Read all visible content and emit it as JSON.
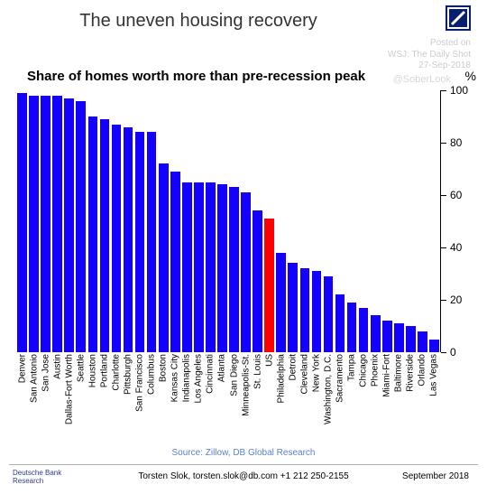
{
  "title": "The uneven housing recovery",
  "subtitle": "Share of homes worth more than pre-recession peak",
  "pct_label": "%",
  "logo": {
    "bg": "#0a1e6e",
    "slash": "#ffffff"
  },
  "watermark": {
    "line1": "Posted on",
    "line2": "WSJ: The Daily Shot",
    "line3": "27-Sep-2018",
    "brand": "@SoberLook"
  },
  "source": "Source: Zillow, DB Global Research",
  "footer": {
    "brand_line1": "Deutsche Bank",
    "brand_line2": "Research",
    "center": "Torsten Slok, torsten.slok@db.com  +1 212 250-2155",
    "right": "September  2018"
  },
  "chart": {
    "type": "bar",
    "ylim": [
      0,
      100
    ],
    "ytick_step": 20,
    "yticks": [
      0,
      20,
      40,
      60,
      80,
      100
    ],
    "bar_gap_ratio": 0.18,
    "default_color": "#1400ff",
    "highlight_color": "#ff0000",
    "axis_color": "#000000",
    "label_fontsize": 10,
    "tick_fontsize": 12,
    "categories": [
      {
        "label": "Denver",
        "value": 99
      },
      {
        "label": "San Antonio",
        "value": 98
      },
      {
        "label": "San Jose",
        "value": 98
      },
      {
        "label": "Austin",
        "value": 98
      },
      {
        "label": "Dallas-Fort Worth",
        "value": 97
      },
      {
        "label": "Seattle",
        "value": 96
      },
      {
        "label": "Houston",
        "value": 90
      },
      {
        "label": "Portland",
        "value": 89
      },
      {
        "label": "Charlotte",
        "value": 87
      },
      {
        "label": "Pittsburgh",
        "value": 86
      },
      {
        "label": "San Francisco",
        "value": 84
      },
      {
        "label": "Columbus",
        "value": 84
      },
      {
        "label": "Boston",
        "value": 72
      },
      {
        "label": "Kansas City",
        "value": 69
      },
      {
        "label": "Indianapolis",
        "value": 65
      },
      {
        "label": "Los Angeles",
        "value": 65
      },
      {
        "label": "Cincinnati",
        "value": 65
      },
      {
        "label": "Atlanta",
        "value": 64
      },
      {
        "label": "San Diego",
        "value": 63
      },
      {
        "label": "Minneapolis-St.",
        "value": 61
      },
      {
        "label": "St. Louis",
        "value": 54
      },
      {
        "label": "US",
        "value": 51,
        "highlight": true
      },
      {
        "label": "Philadelphia",
        "value": 38
      },
      {
        "label": "Detroit",
        "value": 34
      },
      {
        "label": "Cleveland",
        "value": 32
      },
      {
        "label": "New York",
        "value": 31
      },
      {
        "label": "Washington, D.C.",
        "value": 29
      },
      {
        "label": "Sacramento",
        "value": 22
      },
      {
        "label": "Tampa",
        "value": 19
      },
      {
        "label": "Chicago",
        "value": 17
      },
      {
        "label": "Phoenix",
        "value": 14
      },
      {
        "label": "Miami-Fort",
        "value": 12
      },
      {
        "label": "Baltimore",
        "value": 11
      },
      {
        "label": "Riverside",
        "value": 10
      },
      {
        "label": "Orlando",
        "value": 8
      },
      {
        "label": "Las Vegas",
        "value": 5
      }
    ]
  }
}
